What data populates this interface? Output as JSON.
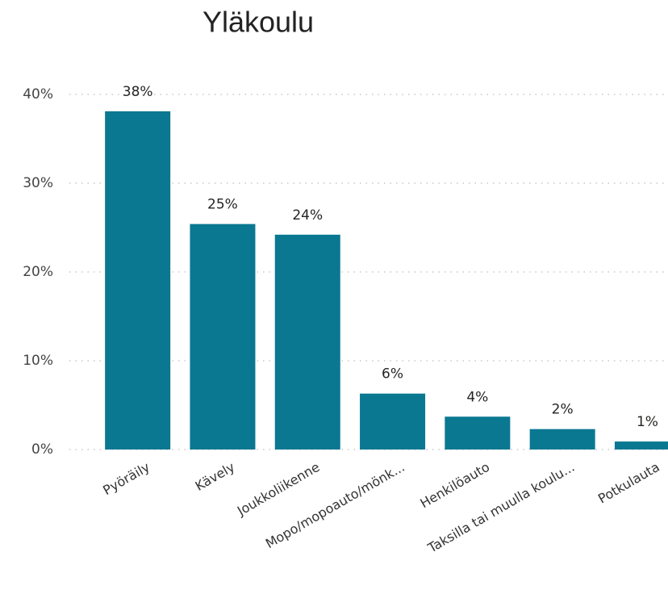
{
  "chart_data": {
    "type": "bar",
    "title": "Yläkoulu",
    "categories": [
      "Pyöräily",
      "Kävely",
      "Joukkoliikenne",
      "Mopo/mopoauto/mönk...",
      "Henkilöauto",
      "Taksilla tai muulla koulu...",
      "Potkulauta"
    ],
    "values": [
      38.1,
      25.4,
      24.2,
      6.3,
      3.7,
      2.3,
      0.9
    ],
    "value_labels": [
      "38%",
      "25%",
      "24%",
      "6%",
      "4%",
      "2%",
      "1%"
    ],
    "color": "#0a7891",
    "ylim": [
      0,
      40
    ],
    "yticks": [
      {
        "value": 0,
        "label": "0%"
      },
      {
        "value": 10,
        "label": "10%"
      },
      {
        "value": 20,
        "label": "20%"
      },
      {
        "value": 30,
        "label": "30%"
      },
      {
        "value": 40,
        "label": "40%"
      }
    ],
    "grid": true
  }
}
